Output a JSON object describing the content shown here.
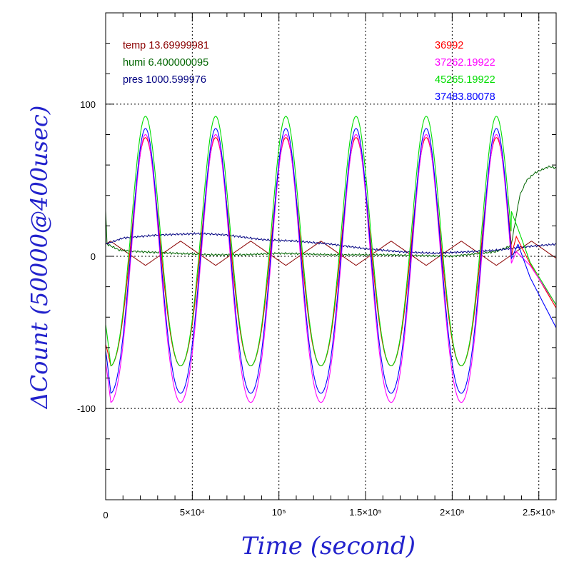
{
  "chart_data": {
    "type": "line",
    "xlabel": "Time (second)",
    "ylabel": "ΔCount (50000@400usec)",
    "xlim": [
      0,
      260000
    ],
    "ylim": [
      -160,
      160
    ],
    "x_ticks": [
      {
        "value": 0,
        "label": "0"
      },
      {
        "value": 50000,
        "label": "5×10⁴"
      },
      {
        "value": 100000,
        "label": "10⁵"
      },
      {
        "value": 150000,
        "label": "1.5×10⁵"
      },
      {
        "value": 200000,
        "label": "2×10⁵"
      },
      {
        "value": 250000,
        "label": "2.5×10⁵"
      }
    ],
    "y_ticks": [
      {
        "value": 100,
        "label": "100"
      },
      {
        "value": 0,
        "label": "0"
      },
      {
        "value": -100,
        "label": "-100"
      }
    ],
    "grid": true,
    "legend_left": [
      {
        "label": "temp 13.69999981",
        "color": "#8b0000"
      },
      {
        "label": "humi 6.400000095",
        "color": "#006400"
      },
      {
        "label": "pres 1000.599976",
        "color": "#000080"
      }
    ],
    "legend_right": [
      {
        "label": "36992",
        "color": "#ff0000"
      },
      {
        "label": "37262.19922",
        "color": "#ff00ff"
      },
      {
        "label": "45265.19922",
        "color": "#00dd00"
      },
      {
        "label": "37483.80078",
        "color": "#0000ff"
      }
    ],
    "oscillation": {
      "period": 40500,
      "first_peak_x": 23000,
      "stop_x": 234000
    },
    "series": [
      {
        "color": "#ff0000",
        "peak": 78,
        "trough": -72,
        "start_y": -58,
        "end_values": [
          [
            234000,
            0
          ],
          [
            237000,
            13
          ],
          [
            245000,
            -5
          ],
          [
            260000,
            -34
          ]
        ]
      },
      {
        "color": "#ff00ff",
        "peak": 80,
        "trough": -96,
        "start_y": -70,
        "end_values": [
          [
            234000,
            -5
          ],
          [
            237000,
            3
          ],
          [
            245000,
            -6
          ],
          [
            260000,
            -32
          ]
        ]
      },
      {
        "color": "#00dd00",
        "peak": 92,
        "trough": -72,
        "start_y": -45,
        "end_values": [
          [
            234000,
            30
          ],
          [
            238000,
            18
          ],
          [
            245000,
            -4
          ],
          [
            260000,
            -32
          ]
        ]
      },
      {
        "color": "#0000ff",
        "peak": 84,
        "trough": -90,
        "start_y": -62,
        "end_values": [
          [
            234000,
            -2
          ],
          [
            238000,
            8
          ],
          [
            245000,
            -14
          ],
          [
            260000,
            -47
          ]
        ]
      }
    ],
    "env_series": [
      {
        "name": "temp",
        "color": "#8b0000",
        "shape": "triangle",
        "center": 2,
        "amplitude": 8,
        "period": 40500,
        "phase": 23000,
        "end_x": 260000
      },
      {
        "name": "humi",
        "color": "#006400",
        "shape": "humi",
        "points": [
          [
            0,
            30
          ],
          [
            800,
            8
          ],
          [
            8000,
            4
          ],
          [
            20000,
            3
          ],
          [
            40000,
            2
          ],
          [
            60000,
            1
          ],
          [
            80000,
            1
          ],
          [
            100000,
            2
          ],
          [
            130000,
            1
          ],
          [
            160000,
            1
          ],
          [
            200000,
            0
          ],
          [
            225000,
            3
          ],
          [
            234000,
            7
          ],
          [
            236000,
            20
          ],
          [
            239000,
            40
          ],
          [
            243000,
            50
          ],
          [
            248000,
            55
          ],
          [
            252000,
            57
          ],
          [
            256000,
            59
          ],
          [
            260000,
            58
          ]
        ]
      },
      {
        "name": "pres",
        "color": "#000080",
        "shape": "pres",
        "points": [
          [
            0,
            8
          ],
          [
            10000,
            12
          ],
          [
            30000,
            14
          ],
          [
            55000,
            15
          ],
          [
            70000,
            14
          ],
          [
            90000,
            11
          ],
          [
            110000,
            10
          ],
          [
            130000,
            8
          ],
          [
            150000,
            5
          ],
          [
            170000,
            3
          ],
          [
            190000,
            2
          ],
          [
            210000,
            3
          ],
          [
            225000,
            4
          ],
          [
            240000,
            6
          ],
          [
            260000,
            8
          ]
        ]
      }
    ]
  }
}
